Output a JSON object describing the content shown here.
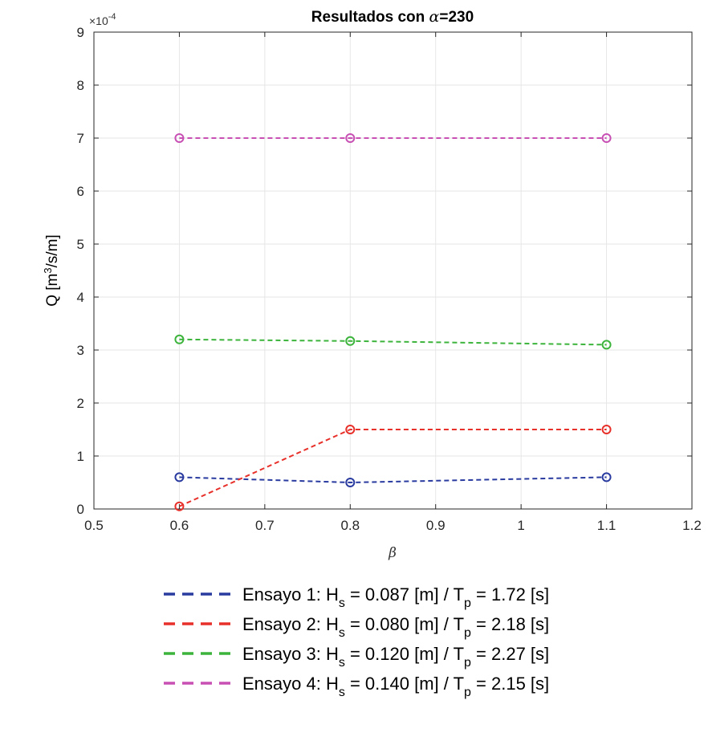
{
  "chart_data": {
    "type": "line",
    "title_prefix": "Resultados con ",
    "title_symbol": "α",
    "title_suffix": "=230",
    "xlabel": "β",
    "ylabel_main": "Q [m",
    "ylabel_sup": "3",
    "ylabel_tail": "/s/m]",
    "y_multiplier_base": "×10",
    "y_multiplier_exp": "-4",
    "xlim": [
      0.5,
      1.2
    ],
    "ylim": [
      0,
      9
    ],
    "xticks": [
      0.5,
      0.6,
      0.7,
      0.8,
      0.9,
      1,
      1.1,
      1.2
    ],
    "xtick_labels": [
      "0.5",
      "0.6",
      "0.7",
      "0.8",
      "0.9",
      "1",
      "1.1",
      "1.2"
    ],
    "yticks": [
      0,
      1,
      2,
      3,
      4,
      5,
      6,
      7,
      8,
      9
    ],
    "ytick_labels": [
      "0",
      "1",
      "2",
      "3",
      "4",
      "5",
      "6",
      "7",
      "8",
      "9"
    ],
    "grid": true,
    "legend_position": "bottom",
    "x": [
      0.6,
      0.8,
      1.1
    ],
    "series": [
      {
        "name": "Ensayo 1",
        "color": "#2a3ba0",
        "values": [
          0.6,
          0.5,
          0.6
        ],
        "label_main": "Ensayo 1: H",
        "label_sub1": "s",
        "label_mid": " = 0.087 [m] / T",
        "label_sub2": "p",
        "label_end": " = 1.72 [s]"
      },
      {
        "name": "Ensayo 2",
        "color": "#e8302a",
        "values": [
          0.05,
          1.5,
          1.5
        ],
        "label_main": "Ensayo 2: H",
        "label_sub1": "s",
        "label_mid": " = 0.080 [m] / T",
        "label_sub2": "p",
        "label_end": " = 2.18 [s]"
      },
      {
        "name": "Ensayo 3",
        "color": "#3cb43c",
        "values": [
          3.2,
          3.17,
          3.1
        ],
        "label_main": "Ensayo 3: H",
        "label_sub1": "s",
        "label_mid": " = 0.120 [m] / T",
        "label_sub2": "p",
        "label_end": " = 2.27 [s]"
      },
      {
        "name": "Ensayo 4",
        "color": "#c850b4",
        "values": [
          7.0,
          7.0,
          7.0
        ],
        "label_main": "Ensayo 4: H",
        "label_sub1": "s",
        "label_mid": " = 0.140 [m] / T",
        "label_sub2": "p",
        "label_end": " = 2.15 [s]"
      }
    ]
  }
}
